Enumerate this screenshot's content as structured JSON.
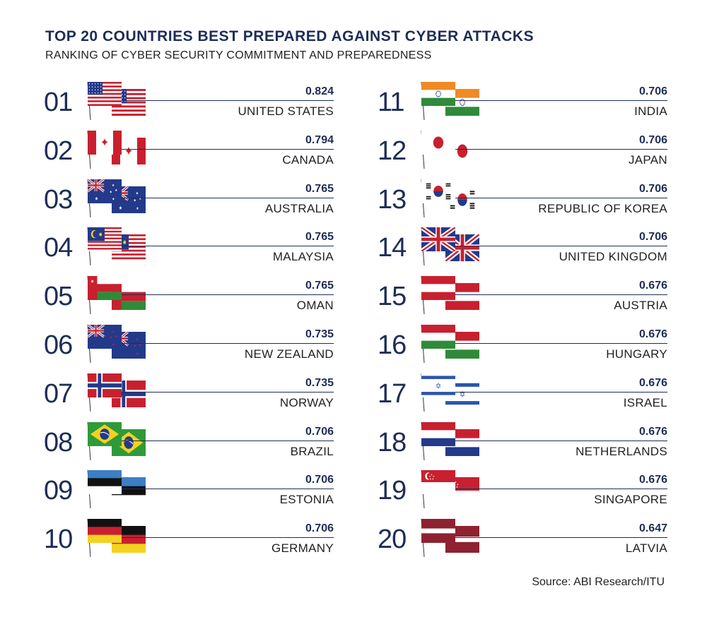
{
  "title": "TOP 20 COUNTRIES BEST PREPARED AGAINST CYBER ATTACKS",
  "subtitle": "RANKING OF CYBER SECURITY COMMITMENT AND PREPAREDNESS",
  "source": "Source: ABI Research/ITU",
  "chart_data": {
    "type": "table",
    "title": "TOP 20 COUNTRIES BEST PREPARED AGAINST CYBER ATTACKS",
    "subtitle": "RANKING OF CYBER SECURITY COMMITMENT AND PREPAREDNESS",
    "rows": [
      {
        "rank": "01",
        "country": "UNITED STATES",
        "score": "0.824",
        "flag": "us-flag-icon"
      },
      {
        "rank": "02",
        "country": "CANADA",
        "score": "0.794",
        "flag": "canada-flag-icon"
      },
      {
        "rank": "03",
        "country": "AUSTRALIA",
        "score": "0.765",
        "flag": "australia-flag-icon"
      },
      {
        "rank": "04",
        "country": "MALAYSIA",
        "score": "0.765",
        "flag": "malaysia-flag-icon"
      },
      {
        "rank": "05",
        "country": "OMAN",
        "score": "0.765",
        "flag": "oman-flag-icon"
      },
      {
        "rank": "06",
        "country": "NEW ZEALAND",
        "score": "0.735",
        "flag": "new-zealand-flag-icon"
      },
      {
        "rank": "07",
        "country": "NORWAY",
        "score": "0.735",
        "flag": "norway-flag-icon"
      },
      {
        "rank": "08",
        "country": "BRAZIL",
        "score": "0.706",
        "flag": "brazil-flag-icon"
      },
      {
        "rank": "09",
        "country": "ESTONIA",
        "score": "0.706",
        "flag": "estonia-flag-icon"
      },
      {
        "rank": "10",
        "country": "GERMANY",
        "score": "0.706",
        "flag": "germany-flag-icon"
      },
      {
        "rank": "11",
        "country": "INDIA",
        "score": "0.706",
        "flag": "india-flag-icon"
      },
      {
        "rank": "12",
        "country": "JAPAN",
        "score": "0.706",
        "flag": "japan-flag-icon"
      },
      {
        "rank": "13",
        "country": "REPUBLIC OF KOREA",
        "score": "0.706",
        "flag": "korea-flag-icon"
      },
      {
        "rank": "14",
        "country": "UNITED KINGDOM",
        "score": "0.706",
        "flag": "uk-flag-icon"
      },
      {
        "rank": "15",
        "country": "AUSTRIA",
        "score": "0.676",
        "flag": "austria-flag-icon"
      },
      {
        "rank": "16",
        "country": "HUNGARY",
        "score": "0.676",
        "flag": "hungary-flag-icon"
      },
      {
        "rank": "17",
        "country": "ISRAEL",
        "score": "0.676",
        "flag": "israel-flag-icon"
      },
      {
        "rank": "18",
        "country": "NETHERLANDS",
        "score": "0.676",
        "flag": "netherlands-flag-icon"
      },
      {
        "rank": "19",
        "country": "SINGAPORE",
        "score": "0.676",
        "flag": "singapore-flag-icon"
      },
      {
        "rank": "20",
        "country": "LATVIA",
        "score": "0.647",
        "flag": "latvia-flag-icon"
      }
    ]
  },
  "colors": {
    "navy": "#1d2d57",
    "red": "#c8202f",
    "white": "#ffffff",
    "blue": "#233a8a",
    "green": "#2f8a3a",
    "saffron": "#f08a24",
    "yellow": "#f4d21f",
    "black": "#111111",
    "estonia_blue": "#3b7fc4",
    "latvia_red": "#8e2231",
    "israel_blue": "#2a55b0",
    "brazil_green": "#2f9a3a",
    "flag_shadow": "#d8d8d8"
  }
}
